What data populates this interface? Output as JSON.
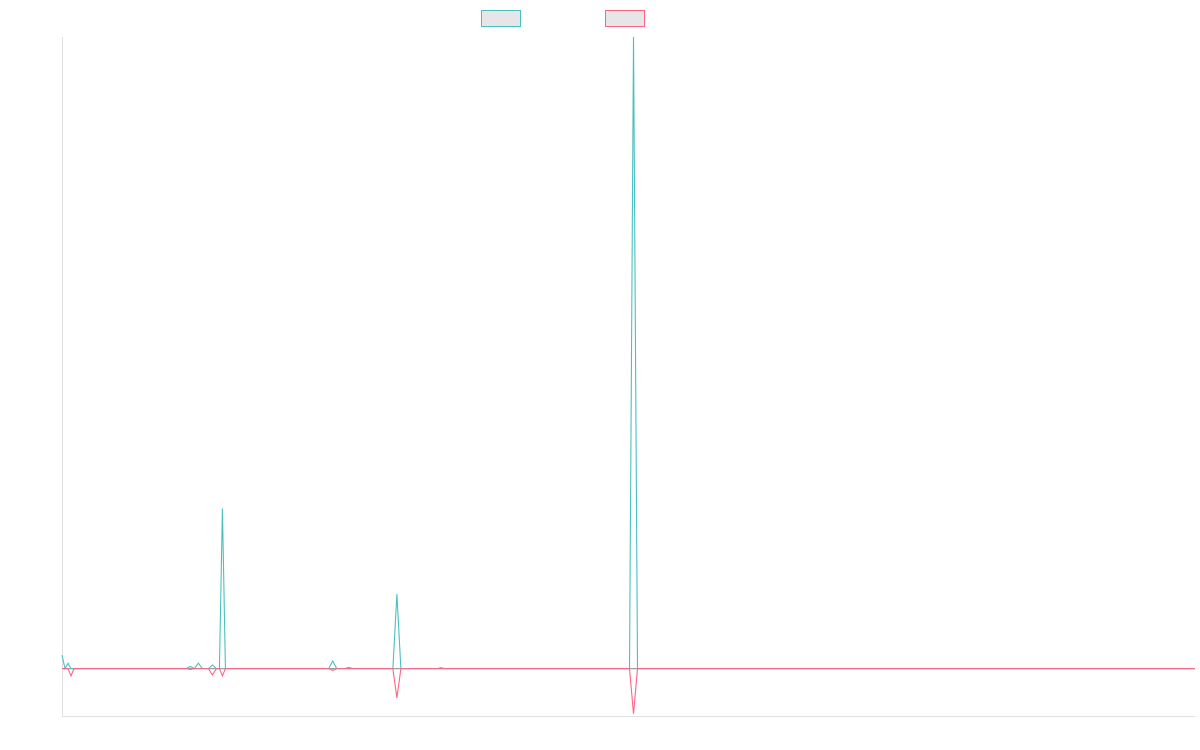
{
  "chart_data": {
    "type": "line",
    "title": "",
    "xlabel": "",
    "ylabel": "",
    "legend_placement": "top-center",
    "grid": false,
    "xlim": [
      0,
      1130
    ],
    "ylim": [
      -105,
      1400
    ],
    "series": [
      {
        "color": "#4bc0c0",
        "fill": "#e6e6e6",
        "points": [
          [
            0,
            30
          ],
          [
            3,
            0
          ],
          [
            6,
            12
          ],
          [
            9,
            0
          ],
          [
            22,
            0
          ],
          [
            26,
            0
          ],
          [
            124,
            0
          ],
          [
            128,
            5
          ],
          [
            132,
            0
          ],
          [
            136,
            12
          ],
          [
            140,
            0
          ],
          [
            146,
            0
          ],
          [
            150,
            8
          ],
          [
            154,
            0
          ],
          [
            157,
            0
          ],
          [
            160,
            355
          ],
          [
            163,
            0
          ],
          [
            170,
            0
          ],
          [
            178,
            0
          ],
          [
            266,
            0
          ],
          [
            270,
            17
          ],
          [
            274,
            0
          ],
          [
            282,
            0
          ],
          [
            286,
            3
          ],
          [
            290,
            0
          ],
          [
            330,
            0
          ],
          [
            334,
            165
          ],
          [
            338,
            0
          ],
          [
            374,
            0
          ],
          [
            378,
            2
          ],
          [
            382,
            0
          ],
          [
            394,
            0
          ],
          [
            398,
            0
          ],
          [
            566,
            0
          ],
          [
            570,
            1400
          ],
          [
            574,
            0
          ],
          [
            1130,
            0
          ]
        ]
      },
      {
        "color": "#ff6384",
        "fill": "#e6e6e6",
        "points": [
          [
            0,
            0
          ],
          [
            3,
            0
          ],
          [
            6,
            0
          ],
          [
            9,
            -16
          ],
          [
            12,
            0
          ],
          [
            124,
            0
          ],
          [
            128,
            -2
          ],
          [
            132,
            0
          ],
          [
            146,
            0
          ],
          [
            150,
            -14
          ],
          [
            154,
            0
          ],
          [
            157,
            0
          ],
          [
            160,
            -16
          ],
          [
            163,
            0
          ],
          [
            266,
            0
          ],
          [
            270,
            -4
          ],
          [
            274,
            0
          ],
          [
            330,
            0
          ],
          [
            334,
            -65
          ],
          [
            338,
            0
          ],
          [
            566,
            0
          ],
          [
            570,
            -100
          ],
          [
            574,
            0
          ],
          [
            1130,
            0
          ]
        ]
      }
    ]
  }
}
